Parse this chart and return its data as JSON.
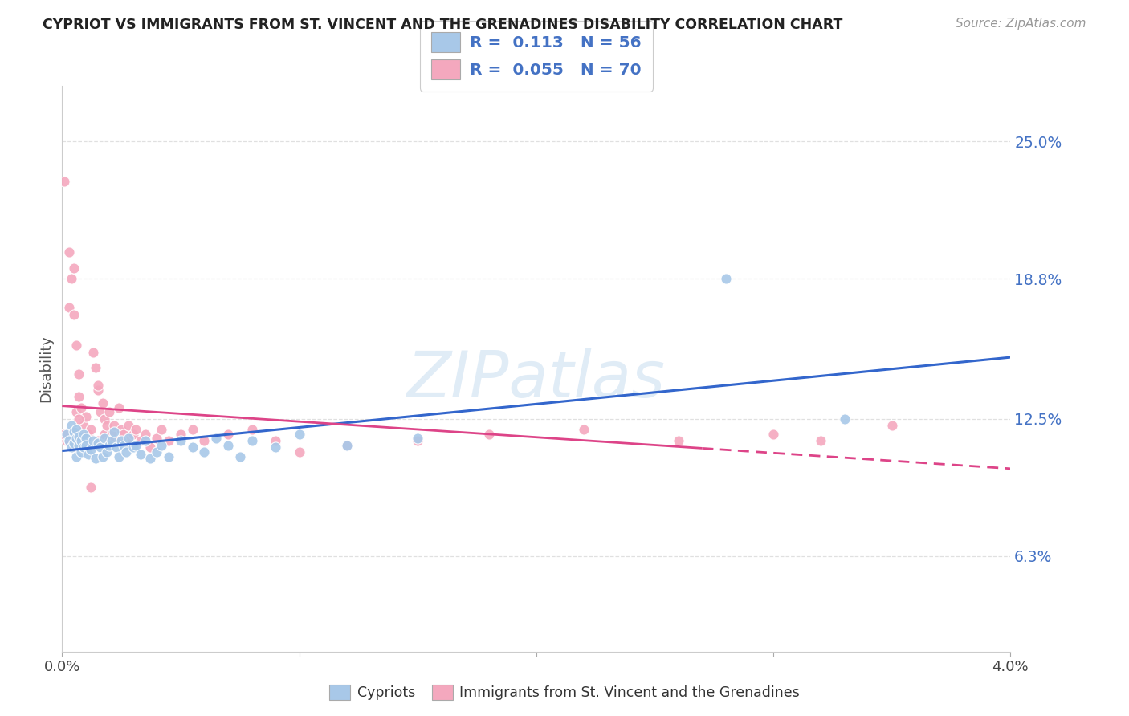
{
  "title": "CYPRIOT VS IMMIGRANTS FROM ST. VINCENT AND THE GRENADINES DISABILITY CORRELATION CHART",
  "source": "Source: ZipAtlas.com",
  "ylabel": "Disability",
  "ytick_vals": [
    0.063,
    0.125,
    0.188,
    0.25
  ],
  "ytick_labels": [
    "6.3%",
    "12.5%",
    "18.8%",
    "25.0%"
  ],
  "xmin": 0.0,
  "xmax": 0.04,
  "ymin": 0.02,
  "ymax": 0.275,
  "watermark": "ZIPatlas",
  "blue_color": "#a8c8e8",
  "pink_color": "#f4a8be",
  "blue_line_color": "#3366cc",
  "pink_line_color": "#dd4488",
  "grid_color": "#dddddd",
  "title_color": "#222222",
  "source_color": "#999999",
  "tick_label_color": "#4472c4",
  "cypriot_x": [
    0.0002,
    0.0003,
    0.0004,
    0.0004,
    0.0005,
    0.0005,
    0.0006,
    0.0006,
    0.0006,
    0.0007,
    0.0007,
    0.0008,
    0.0008,
    0.0009,
    0.0009,
    0.001,
    0.001,
    0.0011,
    0.0012,
    0.0013,
    0.0014,
    0.0015,
    0.0016,
    0.0017,
    0.0018,
    0.0019,
    0.002,
    0.0021,
    0.0022,
    0.0023,
    0.0024,
    0.0025,
    0.0026,
    0.0027,
    0.0028,
    0.003,
    0.0031,
    0.0033,
    0.0035,
    0.0037,
    0.004,
    0.0042,
    0.0045,
    0.005,
    0.0055,
    0.006,
    0.0065,
    0.007,
    0.0075,
    0.008,
    0.009,
    0.01,
    0.012,
    0.015,
    0.028,
    0.033
  ],
  "cypriot_y": [
    0.118,
    0.115,
    0.112,
    0.122,
    0.114,
    0.119,
    0.108,
    0.116,
    0.12,
    0.113,
    0.117,
    0.11,
    0.115,
    0.112,
    0.118,
    0.116,
    0.113,
    0.109,
    0.111,
    0.115,
    0.107,
    0.114,
    0.112,
    0.108,
    0.116,
    0.11,
    0.113,
    0.115,
    0.119,
    0.112,
    0.108,
    0.115,
    0.113,
    0.11,
    0.116,
    0.112,
    0.113,
    0.109,
    0.115,
    0.107,
    0.11,
    0.113,
    0.108,
    0.115,
    0.112,
    0.11,
    0.116,
    0.113,
    0.108,
    0.115,
    0.112,
    0.118,
    0.113,
    0.116,
    0.188,
    0.125
  ],
  "immigrants_x": [
    0.0001,
    0.0002,
    0.0003,
    0.0003,
    0.0004,
    0.0005,
    0.0005,
    0.0005,
    0.0006,
    0.0006,
    0.0007,
    0.0007,
    0.0007,
    0.0008,
    0.0008,
    0.0009,
    0.0009,
    0.001,
    0.001,
    0.0011,
    0.0012,
    0.0013,
    0.0014,
    0.0015,
    0.0015,
    0.0016,
    0.0017,
    0.0018,
    0.0018,
    0.0019,
    0.002,
    0.0021,
    0.0022,
    0.0023,
    0.0024,
    0.0025,
    0.0026,
    0.0027,
    0.0028,
    0.003,
    0.0031,
    0.0033,
    0.0035,
    0.0037,
    0.004,
    0.0042,
    0.0045,
    0.005,
    0.0055,
    0.006,
    0.007,
    0.008,
    0.009,
    0.01,
    0.012,
    0.015,
    0.018,
    0.022,
    0.026,
    0.03,
    0.032,
    0.035,
    0.0001,
    0.0003,
    0.0005,
    0.0007,
    0.0009,
    0.0012,
    0.0015,
    0.002
  ],
  "immigrants_y": [
    0.232,
    0.115,
    0.2,
    0.175,
    0.188,
    0.193,
    0.172,
    0.118,
    0.158,
    0.128,
    0.145,
    0.135,
    0.118,
    0.13,
    0.112,
    0.122,
    0.115,
    0.126,
    0.113,
    0.118,
    0.12,
    0.155,
    0.148,
    0.138,
    0.115,
    0.128,
    0.132,
    0.118,
    0.125,
    0.122,
    0.128,
    0.118,
    0.122,
    0.115,
    0.13,
    0.12,
    0.118,
    0.115,
    0.122,
    0.118,
    0.12,
    0.115,
    0.118,
    0.112,
    0.116,
    0.12,
    0.115,
    0.118,
    0.12,
    0.115,
    0.118,
    0.12,
    0.115,
    0.11,
    0.113,
    0.115,
    0.118,
    0.12,
    0.115,
    0.118,
    0.115,
    0.122,
    0.118,
    0.115,
    0.112,
    0.125,
    0.115,
    0.094,
    0.14,
    0.115
  ]
}
